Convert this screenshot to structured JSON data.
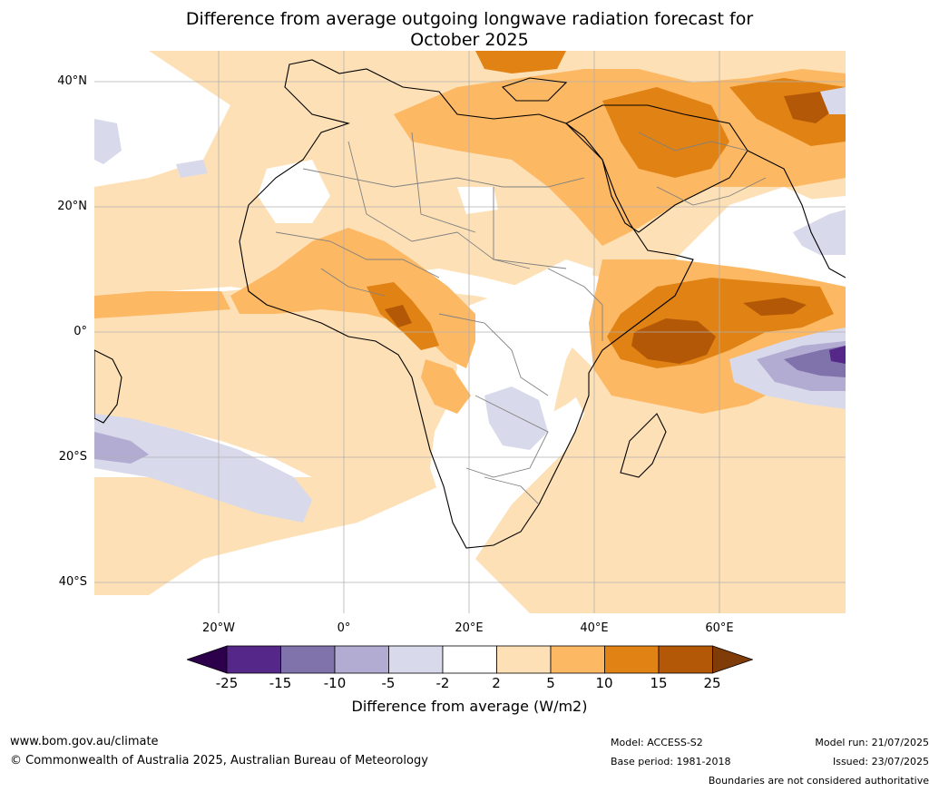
{
  "title_line1": "Difference from average outgoing longwave radiation forecast for",
  "title_line2": "October 2025",
  "lat_labels": [
    "40°N",
    "20°N",
    "0°",
    "20°S",
    "40°S"
  ],
  "lon_labels": [
    "20°W",
    "0°",
    "20°E",
    "40°E",
    "60°E"
  ],
  "colorbar": {
    "label": "Difference from average (W/m2)",
    "ticks": [
      "-25",
      "-15",
      "-10",
      "-5",
      "-2",
      "2",
      "5",
      "10",
      "15",
      "25"
    ],
    "colors": [
      "#2d004b",
      "#542788",
      "#8073ac",
      "#b2abd2",
      "#d8daeb",
      "#ffffff",
      "#fee0b6",
      "#fdb863",
      "#e08214",
      "#b35806",
      "#7f3b08"
    ]
  },
  "footer": {
    "website": "www.bom.gov.au/climate",
    "copyright": "© Commonwealth of Australia 2025, Australian Bureau of Meteorology",
    "model": "Model: ACCESS-S2",
    "base_period": "Base period: 1981-2018",
    "model_run": "Model run: 21/07/2025",
    "issued": "Issued: 23/07/2025",
    "disclaimer": "Boundaries are not considered authoritative"
  }
}
